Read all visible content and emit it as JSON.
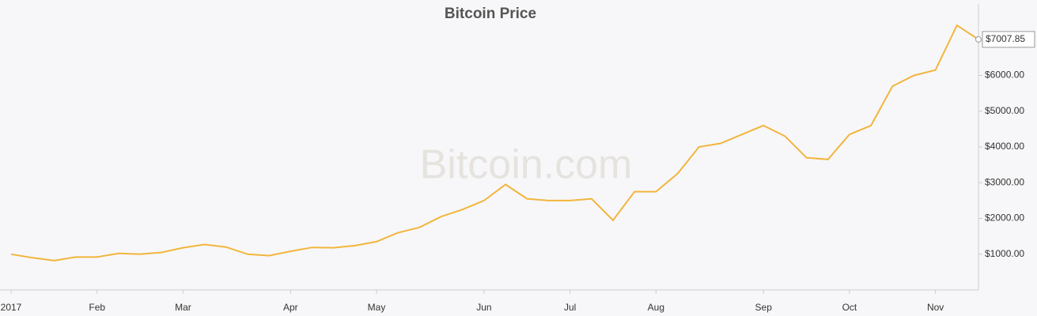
{
  "chart_data": {
    "type": "line",
    "title": "Bitcoin Price",
    "watermark": "Bitcoin.com",
    "categories": [
      "2017",
      null,
      null,
      null,
      "Feb",
      null,
      null,
      null,
      "Mar",
      null,
      null,
      null,
      null,
      "Apr",
      null,
      null,
      null,
      "May",
      null,
      null,
      null,
      null,
      "Jun",
      null,
      null,
      null,
      "Jul",
      null,
      null,
      null,
      "Aug",
      null,
      null,
      null,
      null,
      "Sep",
      null,
      null,
      null,
      "Oct",
      null,
      null,
      null,
      "Nov",
      null,
      null
    ],
    "series": [
      {
        "name": "Bitcoin Price",
        "color": "#f2b53c",
        "values": [
          1000,
          900,
          820,
          920,
          920,
          1020,
          1000,
          1050,
          1180,
          1270,
          1200,
          1000,
          960,
          1080,
          1190,
          1180,
          1240,
          1350,
          1600,
          1750,
          2050,
          2250,
          2500,
          2950,
          2550,
          2500,
          2500,
          2550,
          1950,
          2750,
          2750,
          3250,
          4000,
          4100,
          4350,
          4600,
          4300,
          3700,
          3650,
          4350,
          4600,
          5700,
          6000,
          6150,
          7400,
          7007.85
        ]
      }
    ],
    "last_label": "$7007.85",
    "ylim": [
      0,
      8000
    ],
    "yticks": [
      {
        "value": 1000,
        "label": "$1000.00"
      },
      {
        "value": 2000,
        "label": "$2000.00"
      },
      {
        "value": 3000,
        "label": "$3000.00"
      },
      {
        "value": 4000,
        "label": "$4000.00"
      },
      {
        "value": 5000,
        "label": "$5000.00"
      },
      {
        "value": 6000,
        "label": "$6000.00"
      }
    ]
  }
}
